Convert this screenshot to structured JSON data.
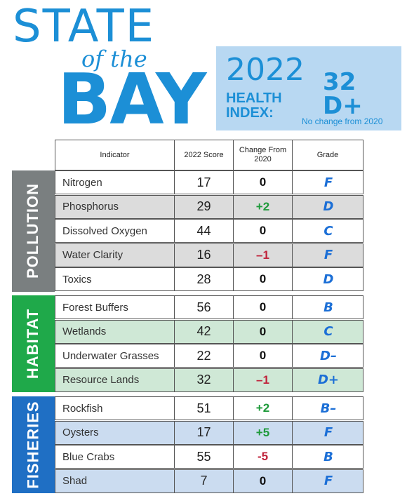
{
  "title": {
    "line1": "STATE",
    "line2": "of the",
    "line3": "BAY"
  },
  "health_index": {
    "year": "2022",
    "label_line1": "HEALTH",
    "label_line2": "INDEX:",
    "score": "32 D+",
    "note": "No change from 2020"
  },
  "table": {
    "headers": [
      "Indicator",
      "2022 Score",
      "Change From 2020",
      "Grade"
    ],
    "sections": [
      {
        "name": "POLLUTION",
        "color": "#7a7f80",
        "alt_color": "#dcdcdc",
        "rows": [
          {
            "indicator": "Nitrogen",
            "score": "17",
            "change": "0",
            "grade": "F"
          },
          {
            "indicator": "Phosphorus",
            "score": "29",
            "change": "+2",
            "grade": "D"
          },
          {
            "indicator": "Dissolved Oxygen",
            "score": "44",
            "change": "0",
            "grade": "C"
          },
          {
            "indicator": "Water Clarity",
            "score": "16",
            "change": "–1",
            "grade": "F"
          },
          {
            "indicator": "Toxics",
            "score": "28",
            "change": "0",
            "grade": "D"
          }
        ]
      },
      {
        "name": "HABITAT",
        "color": "#1fa94a",
        "alt_color": "#cfe8d6",
        "rows": [
          {
            "indicator": "Forest Buffers",
            "score": "56",
            "change": "0",
            "grade": "B"
          },
          {
            "indicator": "Wetlands",
            "score": "42",
            "change": "0",
            "grade": "C"
          },
          {
            "indicator": "Underwater Grasses",
            "score": "22",
            "change": "0",
            "grade": "D–"
          },
          {
            "indicator": "Resource Lands",
            "score": "32",
            "change": "–1",
            "grade": "D+"
          }
        ]
      },
      {
        "name": "FISHERIES",
        "color": "#1f6fc4",
        "alt_color": "#cbdcf0",
        "rows": [
          {
            "indicator": "Rockfish",
            "score": "51",
            "change": "+2",
            "grade": "B–"
          },
          {
            "indicator": "Oysters",
            "score": "17",
            "change": "+5",
            "grade": "F"
          },
          {
            "indicator": "Blue Crabs",
            "score": "55",
            "change": "-5",
            "grade": "B"
          },
          {
            "indicator": "Shad",
            "score": "7",
            "change": "0",
            "grade": "F"
          }
        ]
      }
    ]
  }
}
